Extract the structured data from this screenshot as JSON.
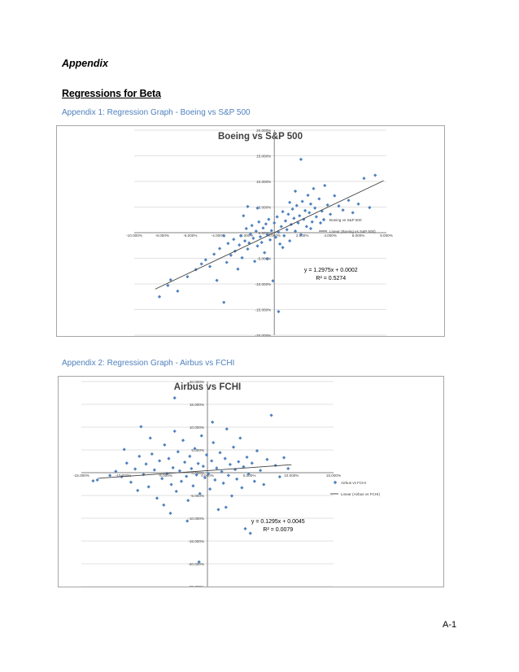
{
  "headings": {
    "appendix": "Appendix",
    "regressions": "Regressions for Beta",
    "caption1": "Appendix 1: Regression Graph - Boeing vs S&P 500",
    "caption2": "Appendix 2: Regression Graph - Airbus vs FCHI"
  },
  "page_number": "A-1",
  "colors": {
    "marker": "#4f81bd",
    "trend": "#404040",
    "grid": "#d9d9d9",
    "caption": "#4f81bd"
  },
  "chart_data": [
    {
      "type": "scatter",
      "title": "Boeing vs S&P 500",
      "xlim": [
        -10,
        8
      ],
      "ylim": [
        -20,
        20
      ],
      "x_ticks": [
        -10,
        -8,
        -6,
        -4,
        -2,
        0,
        2,
        4,
        6,
        8
      ],
      "x_tick_labels": [
        "-10.000%",
        "-8.000%",
        "-6.000%",
        "-4.000%",
        "-2.000%",
        "0.000%",
        "2.000%",
        "4.000%",
        "6.000%",
        "8.000%"
      ],
      "y_ticks": [
        -20,
        -15,
        -10,
        -5,
        0,
        5,
        10,
        15,
        20
      ],
      "y_tick_labels": [
        "-20.000%",
        "-15.000%",
        "-10.000%",
        "-5.000%",
        "0.000%",
        "5.000%",
        "10.000%",
        "15.000%",
        "20.000%"
      ],
      "legend": [
        "Boeing vs S&P 500",
        "Linear (Boeing vs S&P 500)"
      ],
      "legend_position": "right",
      "trendline": {
        "slope": 1.2975,
        "intercept": 0.02,
        "x_range": [
          -8.5,
          7.8
        ]
      },
      "equation": "y = 1.2975x + 0.0002",
      "r_squared": "R² = 0.5274",
      "points": [
        [
          -8.2,
          -12.5
        ],
        [
          -7.6,
          -10.3
        ],
        [
          -7.4,
          -9.2
        ],
        [
          -6.9,
          -11.4
        ],
        [
          -6.2,
          -8.6
        ],
        [
          -5.6,
          -7.2
        ],
        [
          -5.2,
          -6.1
        ],
        [
          -4.9,
          -5.3
        ],
        [
          -4.6,
          -6.6
        ],
        [
          -4.3,
          -4.2
        ],
        [
          -4.1,
          -9.3
        ],
        [
          -3.9,
          -3.1
        ],
        [
          -3.6,
          -13.6
        ],
        [
          -3.4,
          -5.8
        ],
        [
          -3.3,
          -2.1
        ],
        [
          -3.1,
          -4.4
        ],
        [
          -2.9,
          -1.3
        ],
        [
          -2.8,
          -3.6
        ],
        [
          -2.6,
          -7.1
        ],
        [
          -2.5,
          -2.4
        ],
        [
          -2.4,
          -0.6
        ],
        [
          -2.3,
          -4.9
        ],
        [
          -2.1,
          -1.6
        ],
        [
          -2.0,
          0.8
        ],
        [
          -1.9,
          -3.2
        ],
        [
          -1.8,
          -2.0
        ],
        [
          -1.7,
          -0.3
        ],
        [
          -1.6,
          1.4
        ],
        [
          -1.5,
          -1.1
        ],
        [
          -1.4,
          -5.6
        ],
        [
          -1.3,
          0.3
        ],
        [
          -1.2,
          -2.6
        ],
        [
          -1.1,
          2.1
        ],
        [
          -1.0,
          -0.8
        ],
        [
          -0.9,
          -1.9
        ],
        [
          -0.8,
          0.9
        ],
        [
          -0.7,
          -3.9
        ],
        [
          -0.6,
          1.7
        ],
        [
          -0.5,
          -0.4
        ],
        [
          -0.4,
          2.6
        ],
        [
          -0.3,
          -1.4
        ],
        [
          -0.2,
          0.4
        ],
        [
          -0.1,
          -9.4
        ],
        [
          0.0,
          1.9
        ],
        [
          0.1,
          -0.9
        ],
        [
          0.2,
          3.1
        ],
        [
          0.3,
          0.1
        ],
        [
          0.4,
          -2.2
        ],
        [
          0.5,
          1.2
        ],
        [
          0.6,
          4.1
        ],
        [
          0.7,
          -0.6
        ],
        [
          0.8,
          2.3
        ],
        [
          0.9,
          0.6
        ],
        [
          1.0,
          3.6
        ],
        [
          1.1,
          -1.6
        ],
        [
          1.2,
          1.6
        ],
        [
          1.3,
          4.6
        ],
        [
          1.4,
          2.8
        ],
        [
          1.5,
          0.3
        ],
        [
          1.6,
          5.3
        ],
        [
          1.7,
          1.9
        ],
        [
          1.8,
          3.3
        ],
        [
          1.9,
          -0.4
        ],
        [
          2.0,
          6.1
        ],
        [
          2.1,
          2.6
        ],
        [
          2.2,
          4.3
        ],
        [
          2.3,
          1.2
        ],
        [
          2.4,
          7.3
        ],
        [
          2.5,
          3.9
        ],
        [
          2.6,
          5.6
        ],
        [
          2.7,
          2.1
        ],
        [
          2.8,
          8.6
        ],
        [
          2.9,
          4.8
        ],
        [
          3.0,
          3.1
        ],
        [
          3.2,
          6.6
        ],
        [
          3.4,
          4.2
        ],
        [
          3.6,
          9.2
        ],
        [
          3.8,
          5.4
        ],
        [
          4.0,
          3.6
        ],
        [
          4.3,
          7.2
        ],
        [
          4.6,
          5.2
        ],
        [
          4.9,
          4.4
        ],
        [
          5.3,
          6.3
        ],
        [
          5.6,
          3.9
        ],
        [
          6.0,
          5.6
        ],
        [
          6.4,
          10.6
        ],
        [
          6.8,
          4.9
        ],
        [
          7.2,
          11.2
        ],
        [
          1.9,
          14.3
        ],
        [
          -1.2,
          4.8
        ],
        [
          -1.9,
          5.1
        ],
        [
          0.6,
          -2.9
        ],
        [
          -0.5,
          -5.1
        ],
        [
          2.6,
          0.8
        ],
        [
          -3.6,
          -0.6
        ],
        [
          1.1,
          5.9
        ],
        [
          0.3,
          -15.4
        ],
        [
          1.5,
          8.1
        ],
        [
          3.3,
          1.9
        ],
        [
          -2.2,
          3.3
        ]
      ]
    },
    {
      "type": "scatter",
      "title": "Airbus vs FCHI",
      "xlim": [
        -15,
        15
      ],
      "ylim": [
        -25,
        20
      ],
      "x_ticks": [
        -15,
        -10,
        -5,
        0,
        5,
        10,
        15
      ],
      "x_tick_labels": [
        "-15.000%",
        "-10.000%",
        "-5.000%",
        "0.000%",
        "5.000%",
        "10.000%",
        "15.000%"
      ],
      "y_ticks": [
        -25,
        -20,
        -15,
        -10,
        -5,
        0,
        5,
        10,
        15,
        20
      ],
      "y_tick_labels": [
        "-25.000%",
        "-20.000%",
        "-15.000%",
        "-10.000%",
        "-5.000%",
        "0.000%",
        "5.000%",
        "10.000%",
        "15.000%",
        "20.000%"
      ],
      "legend": [
        "Airbus vs FCHI",
        "Linear (Airbus vs FCHI)"
      ],
      "legend_position": "right",
      "trendline": {
        "slope": 0.1295,
        "intercept": 0.45,
        "x_range": [
          -13,
          10
        ]
      },
      "equation": "y = 0.1295x + 0.0045",
      "r_squared": "R² = 0.0079",
      "points": [
        [
          -13.6,
          -1.8
        ],
        [
          -13.1,
          -1.6
        ],
        [
          -11.6,
          -0.6
        ],
        [
          -10.9,
          0.3
        ],
        [
          -10.2,
          -0.9
        ],
        [
          -9.6,
          2.1
        ],
        [
          -9.1,
          -2.1
        ],
        [
          -8.6,
          0.8
        ],
        [
          -8.1,
          3.6
        ],
        [
          -7.6,
          -0.4
        ],
        [
          -7.3,
          1.9
        ],
        [
          -7.0,
          -3.1
        ],
        [
          -6.6,
          4.1
        ],
        [
          -6.3,
          0.6
        ],
        [
          -6.0,
          -5.6
        ],
        [
          -5.7,
          2.6
        ],
        [
          -5.4,
          -1.3
        ],
        [
          -5.1,
          6.1
        ],
        [
          -4.8,
          -0.2
        ],
        [
          -4.6,
          3.1
        ],
        [
          -4.3,
          -2.6
        ],
        [
          -4.1,
          1.1
        ],
        [
          -3.9,
          16.4
        ],
        [
          -3.7,
          -4.1
        ],
        [
          -3.5,
          4.6
        ],
        [
          -3.3,
          0.4
        ],
        [
          -3.1,
          -1.9
        ],
        [
          -2.9,
          7.1
        ],
        [
          -2.7,
          2.3
        ],
        [
          -2.5,
          -0.8
        ],
        [
          -2.3,
          -6.1
        ],
        [
          -2.1,
          3.6
        ],
        [
          -1.9,
          0.9
        ],
        [
          -1.7,
          -2.9
        ],
        [
          -1.5,
          5.3
        ],
        [
          -1.3,
          -0.5
        ],
        [
          -1.1,
          2.0
        ],
        [
          -0.9,
          -4.6
        ],
        [
          -0.7,
          8.1
        ],
        [
          -0.5,
          1.4
        ],
        [
          -0.3,
          -1.1
        ],
        [
          -0.1,
          3.9
        ],
        [
          0.1,
          -0.2
        ],
        [
          0.3,
          -3.6
        ],
        [
          0.5,
          2.6
        ],
        [
          0.7,
          6.6
        ],
        [
          0.9,
          -1.6
        ],
        [
          1.1,
          1.0
        ],
        [
          1.3,
          -8.1
        ],
        [
          1.5,
          4.4
        ],
        [
          1.7,
          0.2
        ],
        [
          1.9,
          -2.3
        ],
        [
          2.1,
          3.1
        ],
        [
          2.3,
          9.6
        ],
        [
          2.5,
          -0.6
        ],
        [
          2.7,
          1.8
        ],
        [
          2.9,
          -5.1
        ],
        [
          3.1,
          5.6
        ],
        [
          3.3,
          0.7
        ],
        [
          3.5,
          -1.4
        ],
        [
          3.7,
          2.4
        ],
        [
          3.9,
          7.6
        ],
        [
          4.1,
          -3.3
        ],
        [
          4.3,
          1.3
        ],
        [
          4.5,
          -12.3
        ],
        [
          4.7,
          3.4
        ],
        [
          4.9,
          -0.3
        ],
        [
          5.1,
          -13.3
        ],
        [
          5.3,
          2.1
        ],
        [
          5.6,
          -1.9
        ],
        [
          5.9,
          4.8
        ],
        [
          6.3,
          0.5
        ],
        [
          6.7,
          -2.6
        ],
        [
          7.1,
          2.9
        ],
        [
          7.6,
          12.6
        ],
        [
          8.1,
          1.6
        ],
        [
          8.6,
          -0.9
        ],
        [
          9.1,
          3.3
        ],
        [
          9.6,
          0.9
        ],
        [
          -9.9,
          5.1
        ],
        [
          -8.3,
          -3.9
        ],
        [
          -6.8,
          7.6
        ],
        [
          -5.2,
          -7.1
        ],
        [
          -3.9,
          9.1
        ],
        [
          -2.4,
          -10.6
        ],
        [
          -1.0,
          -19.6
        ],
        [
          0.6,
          11.1
        ],
        [
          2.2,
          -7.6
        ],
        [
          -7.9,
          10.1
        ],
        [
          -4.4,
          -8.9
        ]
      ]
    }
  ]
}
